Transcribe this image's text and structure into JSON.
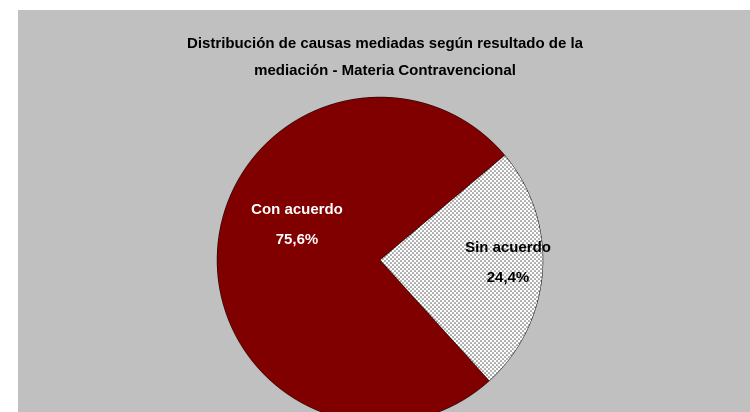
{
  "chart_data": {
    "type": "pie",
    "title": [
      "Distribución de causas mediadas según resultado de la",
      "mediación - Materia Contravencional"
    ],
    "categories": [
      "Con acuerdo",
      "Sin acuerdo"
    ],
    "values": [
      75.6,
      24.4
    ],
    "value_labels": [
      "75,6%",
      "24,4%"
    ],
    "colors": [
      "#800000",
      "#ffffff"
    ],
    "label_colors": [
      "#ffffff",
      "#000000"
    ]
  }
}
